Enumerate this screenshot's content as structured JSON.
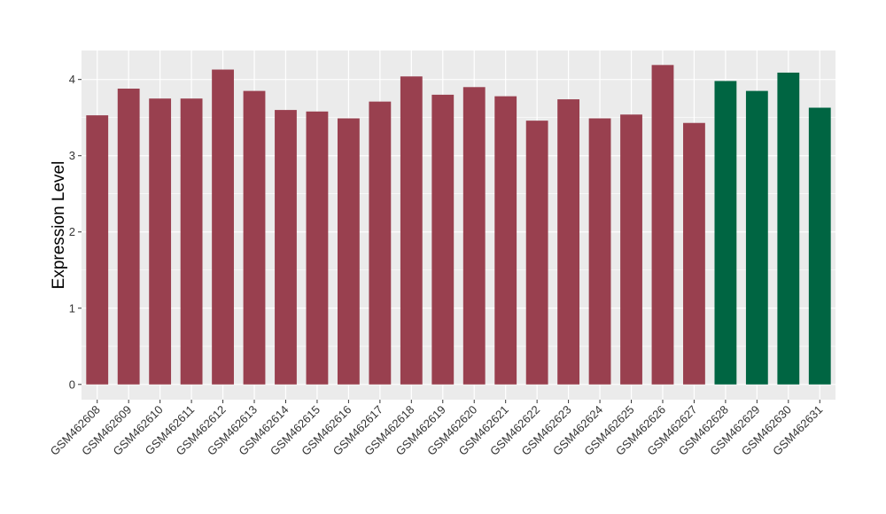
{
  "chart_data": {
    "type": "bar",
    "title": "",
    "xlabel": "",
    "ylabel": "Expression Level",
    "ylim": [
      -0.2,
      4.38
    ],
    "yticks": [
      0,
      1,
      2,
      3,
      4
    ],
    "grid": true,
    "legend": "none",
    "categories": [
      "GSM462608",
      "GSM462609",
      "GSM462610",
      "GSM462611",
      "GSM462612",
      "GSM462613",
      "GSM462614",
      "GSM462615",
      "GSM462616",
      "GSM462617",
      "GSM462618",
      "GSM462619",
      "GSM462620",
      "GSM462621",
      "GSM462622",
      "GSM462623",
      "GSM462624",
      "GSM462625",
      "GSM462626",
      "GSM462627",
      "GSM462628",
      "GSM462629",
      "GSM462630",
      "GSM462631"
    ],
    "values": [
      3.53,
      3.88,
      3.75,
      3.75,
      4.13,
      3.85,
      3.6,
      3.58,
      3.49,
      3.71,
      4.04,
      3.8,
      3.9,
      3.78,
      3.46,
      3.74,
      3.49,
      3.54,
      4.19,
      3.43,
      3.98,
      3.85,
      4.09,
      3.63
    ],
    "bar_colors": [
      "#99404f",
      "#99404f",
      "#99404f",
      "#99404f",
      "#99404f",
      "#99404f",
      "#99404f",
      "#99404f",
      "#99404f",
      "#99404f",
      "#99404f",
      "#99404f",
      "#99404f",
      "#99404f",
      "#99404f",
      "#99404f",
      "#99404f",
      "#99404f",
      "#99404f",
      "#99404f",
      "#006542",
      "#006542",
      "#006542",
      "#006542"
    ],
    "panel_background": "#ebebeb",
    "gridline_color": "#ffffff"
  }
}
